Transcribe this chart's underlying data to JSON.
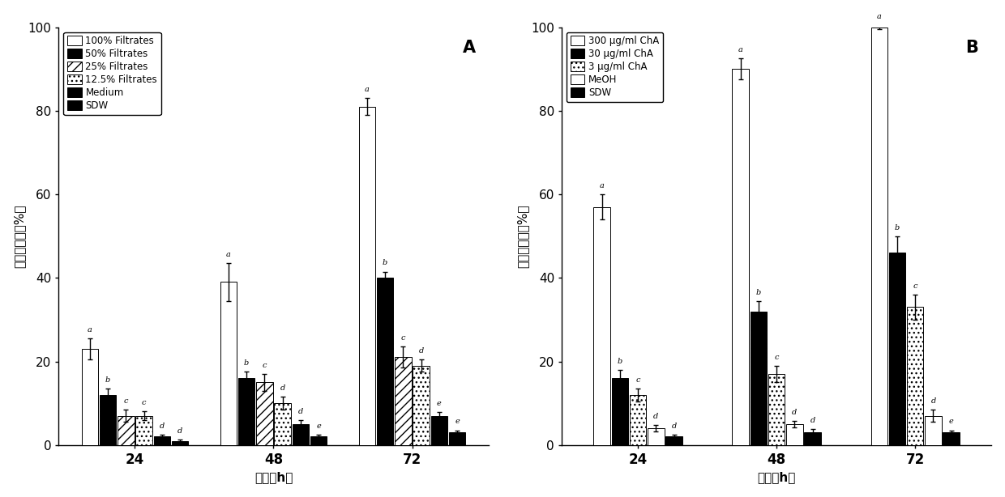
{
  "panel_A": {
    "title": "A",
    "groups": [
      24,
      48,
      72
    ],
    "series": [
      {
        "label": "100% Filtrates",
        "values": [
          23.0,
          39.0,
          81.0
        ],
        "errors": [
          2.5,
          4.5,
          2.0
        ],
        "hatch": "",
        "facecolor": "white"
      },
      {
        "label": "50% Filtrates",
        "values": [
          12.0,
          16.0,
          40.0
        ],
        "errors": [
          1.5,
          1.5,
          1.5
        ],
        "hatch": "---",
        "facecolor": "black"
      },
      {
        "label": "25% Filtrates",
        "values": [
          7.0,
          15.0,
          21.0
        ],
        "errors": [
          1.5,
          2.0,
          2.5
        ],
        "hatch": "///",
        "facecolor": "white"
      },
      {
        "label": "12.5% Filtrates",
        "values": [
          7.0,
          10.0,
          19.0
        ],
        "errors": [
          1.0,
          1.5,
          1.5
        ],
        "hatch": "...",
        "facecolor": "white"
      },
      {
        "label": "Medium",
        "values": [
          2.0,
          5.0,
          7.0
        ],
        "errors": [
          0.5,
          1.0,
          0.8
        ],
        "hatch": "\\\\",
        "facecolor": "black"
      },
      {
        "label": "SDW",
        "values": [
          1.0,
          2.0,
          3.0
        ],
        "errors": [
          0.3,
          0.5,
          0.5
        ],
        "hatch": "",
        "facecolor": "black"
      }
    ],
    "significance_24": [
      "a",
      "b",
      "c",
      "c",
      "d",
      "d"
    ],
    "significance_48": [
      "a",
      "b",
      "c",
      "d",
      "d",
      "e"
    ],
    "significance_72": [
      "a",
      "b",
      "c",
      "d",
      "e",
      "e"
    ],
    "ylabel": "校正死亡率（%）",
    "xlabel": "时间（h）",
    "ylim": [
      0,
      100
    ],
    "yticks": [
      0,
      20,
      40,
      60,
      80,
      100
    ]
  },
  "panel_B": {
    "title": "B",
    "groups": [
      24,
      48,
      72
    ],
    "series": [
      {
        "label": "300 μg/ml ChA",
        "values": [
          57.0,
          90.0,
          100.0
        ],
        "errors": [
          3.0,
          2.5,
          0.5
        ],
        "hatch": "",
        "facecolor": "white"
      },
      {
        "label": "30 μg/ml ChA",
        "values": [
          16.0,
          32.0,
          46.0
        ],
        "errors": [
          2.0,
          2.5,
          4.0
        ],
        "hatch": "---",
        "facecolor": "black"
      },
      {
        "label": "3 μg/ml ChA",
        "values": [
          12.0,
          17.0,
          33.0
        ],
        "errors": [
          1.5,
          2.0,
          3.0
        ],
        "hatch": "...",
        "facecolor": "white"
      },
      {
        "label": "MeOH",
        "values": [
          4.0,
          5.0,
          7.0
        ],
        "errors": [
          0.8,
          0.8,
          1.5
        ],
        "hatch": "",
        "facecolor": "white"
      },
      {
        "label": "SDW",
        "values": [
          2.0,
          3.0,
          3.0
        ],
        "errors": [
          0.5,
          0.8,
          0.5
        ],
        "hatch": "",
        "facecolor": "black"
      }
    ],
    "significance_24": [
      "a",
      "b",
      "c",
      "d",
      "d"
    ],
    "significance_48": [
      "a",
      "b",
      "c",
      "d",
      "d"
    ],
    "significance_72": [
      "a",
      "b",
      "c",
      "d",
      "e"
    ],
    "ylabel": "校正死亡率（%）",
    "xlabel": "时间（h）",
    "ylim": [
      0,
      100
    ],
    "yticks": [
      0,
      20,
      40,
      60,
      80,
      100
    ]
  }
}
